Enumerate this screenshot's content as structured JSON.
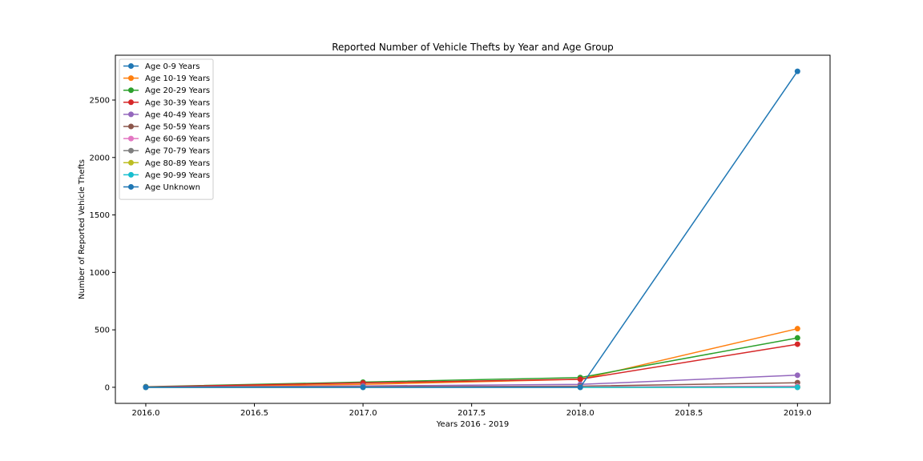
{
  "chart_data": {
    "type": "line",
    "title": "Reported Number of Vehicle Thefts by Year and Age Group",
    "xlabel": "Years 2016 - 2019",
    "ylabel": "Number of Reported Vehicle Thefts",
    "xlim": [
      2015.86,
      2019.15
    ],
    "ylim": [
      -140,
      2890
    ],
    "x_ticks": [
      2016.0,
      2016.5,
      2017.0,
      2017.5,
      2018.0,
      2018.5,
      2019.0
    ],
    "x_tick_labels": [
      "2016.0",
      "2016.5",
      "2017.0",
      "2017.5",
      "2018.0",
      "2018.5",
      "2019.0"
    ],
    "y_ticks": [
      0,
      500,
      1000,
      1500,
      2000,
      2500
    ],
    "y_tick_labels": [
      "0",
      "500",
      "1000",
      "1500",
      "2000",
      "2500"
    ],
    "grid": false,
    "legend_position": "upper-left",
    "x": [
      2016,
      2017,
      2018,
      2019
    ],
    "series": [
      {
        "name": "Age 0-9 Years",
        "color": "#1f77b4",
        "values": [
          0,
          0,
          0,
          0
        ]
      },
      {
        "name": "Age 10-19 Years",
        "color": "#ff7f0e",
        "values": [
          2,
          25,
          70,
          510
        ]
      },
      {
        "name": "Age 20-29 Years",
        "color": "#2ca02c",
        "values": [
          5,
          45,
          85,
          430
        ]
      },
      {
        "name": "Age 30-39 Years",
        "color": "#d62728",
        "values": [
          3,
          38,
          70,
          375
        ]
      },
      {
        "name": "Age 40-49 Years",
        "color": "#9467bd",
        "values": [
          1,
          12,
          25,
          105
        ]
      },
      {
        "name": "Age 50-59 Years",
        "color": "#8c564b",
        "values": [
          0,
          5,
          10,
          40
        ]
      },
      {
        "name": "Age 60-69 Years",
        "color": "#e377c2",
        "values": [
          0,
          2,
          3,
          10
        ]
      },
      {
        "name": "Age 70-79 Years",
        "color": "#7f7f7f",
        "values": [
          0,
          1,
          1,
          3
        ]
      },
      {
        "name": "Age 80-89 Years",
        "color": "#bcbd22",
        "values": [
          0,
          0,
          0,
          1
        ]
      },
      {
        "name": "Age 90-99 Years",
        "color": "#17becf",
        "values": [
          0,
          0,
          0,
          0
        ]
      },
      {
        "name": "Age Unknown",
        "color": "#1f77b4",
        "values": [
          0,
          0,
          0,
          2750
        ]
      }
    ]
  }
}
